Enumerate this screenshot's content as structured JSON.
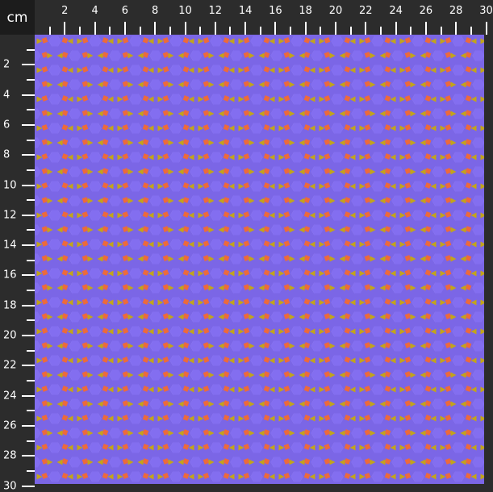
{
  "ruler": {
    "unit": "cm",
    "top_labels": [
      "2",
      "4",
      "6",
      "8",
      "10",
      "12",
      "14",
      "16",
      "18",
      "20",
      "22",
      "24",
      "26",
      "28",
      "30"
    ],
    "left_labels": [
      "2",
      "4",
      "6",
      "8",
      "10",
      "12",
      "14",
      "16",
      "18",
      "20",
      "22",
      "24",
      "26",
      "28",
      "30"
    ]
  },
  "fabric": {
    "pattern": "geometric hexagon, square and triangle tiling",
    "colors": {
      "background": "#7b66e6",
      "hexagon_light": "#b3a2f7",
      "hexagon": "#836ef0",
      "square": "#ec6a3c",
      "triangle": "#c2a41c"
    }
  }
}
